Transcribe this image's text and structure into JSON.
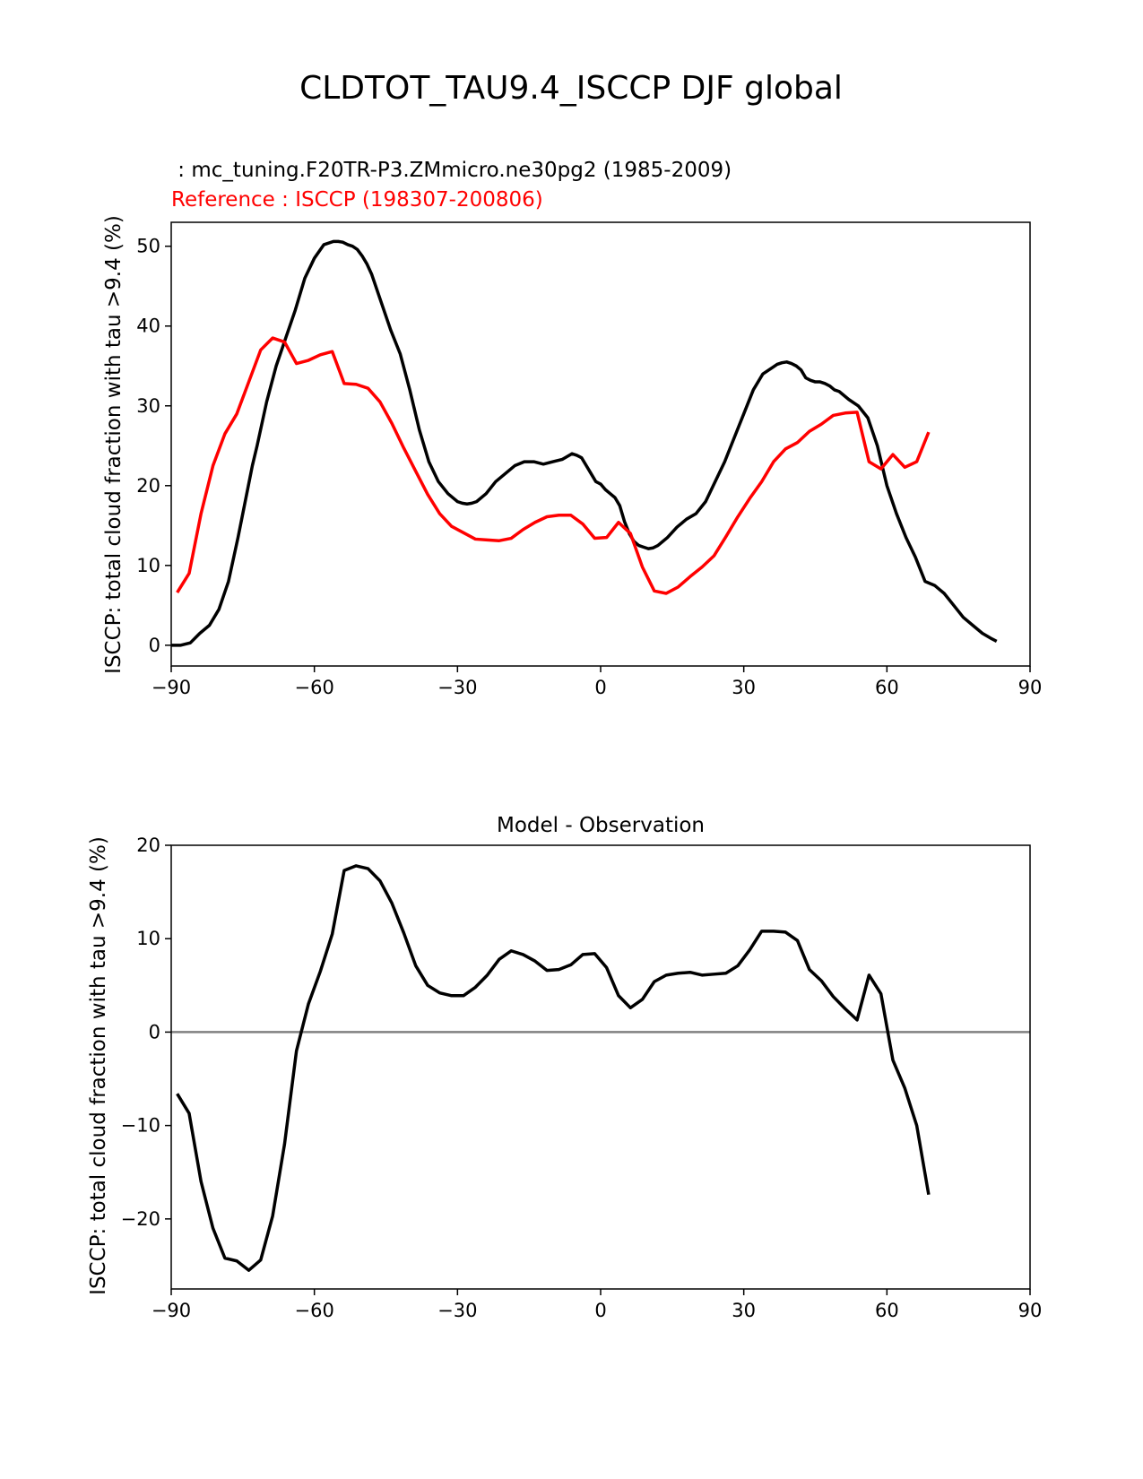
{
  "title": "CLDTOT_TAU9.4_ISCCP DJF global",
  "colors": {
    "model": "#000000",
    "reference": "#ff0000",
    "zero_line": "#808080"
  },
  "chart_data": [
    {
      "type": "line",
      "test_label": " : mc_tuning.F20TR-P3.ZMmicro.ne30pg2 (1985-2009)",
      "reference_label": "Reference : ISCCP (198307-200806)",
      "ylabel": "ISCCP: total cloud fraction with tau >9.4 (%)",
      "xlim": [
        -90,
        90
      ],
      "ylim": [
        -2.6,
        53
      ],
      "xticks": [
        -90,
        -60,
        -30,
        0,
        30,
        60,
        90
      ],
      "xtick_labels": [
        "−90",
        "−60",
        "−30",
        "0",
        "30",
        "60",
        "90"
      ],
      "yticks": [
        0,
        10,
        20,
        30,
        40,
        50
      ],
      "ytick_labels": [
        "0",
        "10",
        "20",
        "30",
        "40",
        "50"
      ],
      "series": [
        {
          "color": "#000000",
          "x": [
            -90,
            -88,
            -86,
            -85,
            -84,
            -82,
            -80,
            -78,
            -76,
            -74,
            -73,
            -72,
            -70,
            -68,
            -66,
            -64,
            -62,
            -60,
            -58,
            -56,
            -55,
            -54,
            -53,
            -52,
            -51,
            -50,
            -49,
            -48,
            -46,
            -44,
            -42,
            -40,
            -38,
            -36,
            -34,
            -32,
            -30,
            -29,
            -28,
            -27,
            -26,
            -24,
            -22,
            -20,
            -18,
            -16,
            -14,
            -12,
            -10,
            -8,
            -6,
            -5,
            -4,
            -3,
            -2,
            -1,
            0,
            1,
            2,
            3,
            4,
            5,
            6,
            7,
            8,
            9,
            10,
            11,
            12,
            13,
            14,
            16,
            18,
            20,
            22,
            24,
            26,
            28,
            30,
            32,
            34,
            36,
            37,
            38,
            39,
            40,
            41,
            42,
            43,
            44,
            45,
            46,
            47,
            48,
            49,
            50,
            52,
            54,
            56,
            58,
            59,
            60,
            62,
            64,
            66,
            68,
            70,
            71,
            72,
            74,
            76,
            78,
            80,
            82,
            83
          ],
          "y": [
            0,
            0,
            0.3,
            0.9,
            1.5,
            2.5,
            4.5,
            8,
            13.5,
            19.5,
            22.5,
            25,
            30.5,
            35,
            38.5,
            42,
            46,
            48.5,
            50.2,
            50.6,
            50.6,
            50.5,
            50.2,
            50.0,
            49.6,
            48.8,
            47.8,
            46.5,
            43,
            39.5,
            36.5,
            32,
            27,
            23,
            20.5,
            19,
            18,
            17.8,
            17.7,
            17.8,
            18.0,
            19,
            20.5,
            21.5,
            22.5,
            23,
            23,
            22.7,
            23,
            23.3,
            24,
            23.8,
            23.5,
            22.5,
            21.5,
            20.5,
            20.2,
            19.5,
            19,
            18.5,
            17.5,
            15.5,
            14,
            13,
            12.5,
            12.3,
            12.1,
            12.2,
            12.5,
            13,
            13.5,
            14.8,
            15.8,
            16.5,
            18,
            20.5,
            23,
            26,
            29,
            32,
            34,
            34.8,
            35.2,
            35.4,
            35.5,
            35.3,
            35,
            34.5,
            33.5,
            33.2,
            33,
            33,
            32.8,
            32.5,
            32,
            31.8,
            30.8,
            30,
            28.5,
            25,
            22.5,
            20,
            16.5,
            13.5,
            11,
            8,
            7.5,
            7,
            6.5,
            5,
            3.5,
            2.5,
            1.5,
            0.8,
            0.5
          ]
        },
        {
          "color": "#ff0000",
          "x": [
            -88.75,
            -86.25,
            -83.75,
            -81.25,
            -78.75,
            -76.25,
            -73.75,
            -71.25,
            -68.75,
            -66.25,
            -63.75,
            -61.25,
            -58.75,
            -56.25,
            -53.75,
            -51.25,
            -48.75,
            -46.25,
            -43.75,
            -41.25,
            -38.75,
            -36.25,
            -33.75,
            -31.25,
            -28.75,
            -26.25,
            -23.75,
            -21.25,
            -18.75,
            -16.25,
            -13.75,
            -11.25,
            -8.75,
            -6.25,
            -3.75,
            -1.25,
            1.25,
            3.75,
            6.25,
            8.75,
            11.25,
            13.75,
            16.25,
            18.75,
            21.25,
            23.75,
            26.25,
            28.75,
            31.25,
            33.75,
            36.25,
            38.75,
            41.25,
            43.75,
            46.25,
            48.75,
            51.25,
            53.75,
            56.25,
            58.75,
            61.25,
            63.75,
            66.25,
            68.75
          ],
          "y": [
            6.6,
            9,
            16.5,
            22.5,
            26.5,
            29,
            33,
            37,
            38.5,
            38,
            35.3,
            35.7,
            36.4,
            36.8,
            32.8,
            32.7,
            32.2,
            30.5,
            27.8,
            24.7,
            21.8,
            18.9,
            16.5,
            14.9,
            14.1,
            13.3,
            13.2,
            13.1,
            13.4,
            14.5,
            15.4,
            16.1,
            16.3,
            16.3,
            15.2,
            13.4,
            13.5,
            15.4,
            14,
            9.8,
            6.8,
            6.5,
            7.3,
            8.6,
            9.8,
            11.2,
            13.6,
            16.1,
            18.4,
            20.5,
            23,
            24.6,
            25.4,
            26.8,
            27.7,
            28.8,
            29.1,
            29.2,
            23,
            22.1,
            23.9,
            22.3,
            23,
            26.7
          ]
        }
      ]
    },
    {
      "type": "line",
      "title": "Model - Observation",
      "ylabel": "ISCCP: total cloud fraction with tau >9.4 (%)",
      "xlim": [
        -90,
        90
      ],
      "ylim": [
        -27.5,
        20
      ],
      "xticks": [
        -90,
        -60,
        -30,
        0,
        30,
        60,
        90
      ],
      "xtick_labels": [
        "−90",
        "−60",
        "−30",
        "0",
        "30",
        "60",
        "90"
      ],
      "yticks": [
        -20,
        -10,
        0,
        10,
        20
      ],
      "ytick_labels": [
        "−20",
        "−10",
        "0",
        "10",
        "20"
      ],
      "zero_line": 0,
      "series": [
        {
          "color": "#000000",
          "x": [
            -88.75,
            -86.25,
            -83.75,
            -81.25,
            -78.75,
            -76.25,
            -73.75,
            -71.25,
            -68.75,
            -66.25,
            -63.75,
            -61.25,
            -58.75,
            -56.25,
            -53.75,
            -51.25,
            -48.75,
            -46.25,
            -43.75,
            -41.25,
            -38.75,
            -36.25,
            -33.75,
            -31.25,
            -28.75,
            -26.25,
            -23.75,
            -21.25,
            -18.75,
            -16.25,
            -13.75,
            -11.25,
            -8.75,
            -6.25,
            -3.75,
            -1.25,
            1.25,
            3.75,
            6.25,
            8.75,
            11.25,
            13.75,
            16.25,
            18.75,
            21.25,
            23.75,
            26.25,
            28.75,
            31.25,
            33.75,
            36.25,
            38.75,
            41.25,
            43.75,
            46.25,
            48.75,
            51.25,
            53.75,
            56.25,
            58.75,
            61.25,
            63.75,
            66.25,
            68.75
          ],
          "y": [
            -6.6,
            -8.7,
            -16,
            -21,
            -24.2,
            -24.5,
            -25.5,
            -24.4,
            -19.7,
            -12,
            -2,
            3,
            6.5,
            10.5,
            17.3,
            17.8,
            17.5,
            16.2,
            13.8,
            10.6,
            7.1,
            5,
            4.2,
            3.9,
            3.9,
            4.8,
            6.1,
            7.8,
            8.7,
            8.3,
            7.6,
            6.6,
            6.7,
            7.2,
            8.3,
            8.4,
            6.9,
            3.9,
            2.6,
            3.5,
            5.4,
            6.1,
            6.3,
            6.4,
            6.1,
            6.2,
            6.3,
            7.1,
            8.8,
            10.8,
            10.8,
            10.7,
            9.8,
            6.7,
            5.5,
            3.8,
            2.5,
            1.3,
            6.1,
            4.1,
            -3,
            -6,
            -10,
            -17.4
          ]
        }
      ]
    }
  ]
}
